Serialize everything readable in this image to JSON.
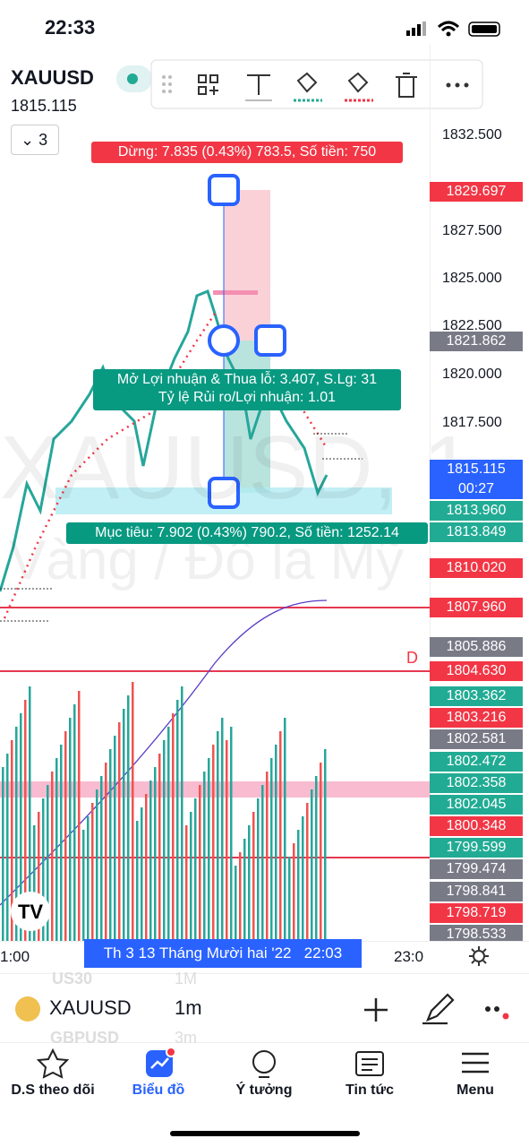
{
  "status_bar": {
    "time": "22:33"
  },
  "header": {
    "symbol": "XAUUSD",
    "price": "1815.115",
    "layout_count": "3"
  },
  "overlay": {
    "stop": "Dừng: 7.835 (0.43%) 783.5, Số tiền: 750",
    "position": [
      "Mở Lợi nhuận & Thua lỗ: 3.407, S.Lg: 31",
      "Tỷ lệ Rủi ro/Lợi nhuận: 1.01"
    ],
    "target": "Mục tiêu: 7.902 (0.43%) 790.2, Số tiền: 1252.14",
    "line_marker": "D"
  },
  "watermark": {
    "symbol": "XAUUSD, 1",
    "name": "Vàng / Đô la Mỹ"
  },
  "price_scale": [
    "1832.500",
    "1827.500",
    "1825.000",
    "1822.500",
    "1820.000",
    "1817.500"
  ],
  "price_badges": [
    "1829.697",
    "1821.862",
    "1815.115",
    "1813.960",
    "1813.849",
    "1810.020",
    "1807.960",
    "1805.886",
    "1804.630",
    "1803.362",
    "1803.216",
    "1802.581",
    "1802.472",
    "1802.358",
    "1802.045",
    "1800.348",
    "1799.599",
    "1799.474",
    "1798.841",
    "1798.719",
    "1798.533"
  ],
  "countdown": "00:27",
  "time_axis": {
    "left": "1:00",
    "right": "23:0",
    "crosshair": "Th 3 13 Tháng Mười hai '22   22:03"
  },
  "symbol_bar": {
    "symbol": "XAUUSD",
    "interval": "1m",
    "ghost_symbols": [
      "US30",
      "GBPUSD"
    ],
    "ghost_intervals": [
      "1M",
      "3m"
    ]
  },
  "tabs": [
    "D.S theo dõi",
    "Biểu đồ",
    "Ý tưởng",
    "Tin tức",
    "Menu"
  ]
}
